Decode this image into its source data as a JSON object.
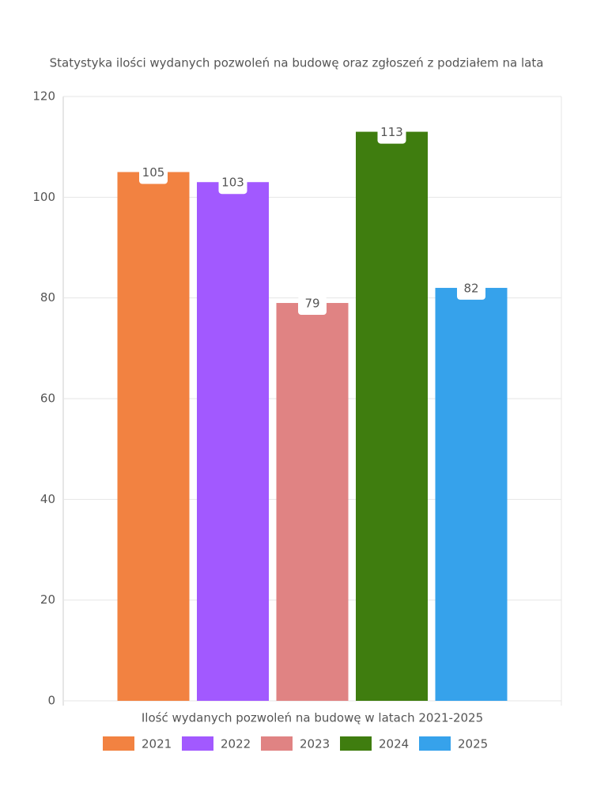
{
  "chart_data": {
    "type": "bar",
    "title": "Statystyka ilości wydanych pozwoleń na budowę oraz zgłoszeń z podziałem na lata",
    "categories": [
      "Ilość wydanych pozwoleń na budowę w latach 2021-2025"
    ],
    "series": [
      {
        "name": "2021",
        "color": "#f28241",
        "values": [
          105
        ]
      },
      {
        "name": "2022",
        "color": "#a259ff",
        "values": [
          103
        ]
      },
      {
        "name": "2023",
        "color": "#e08383",
        "values": [
          79
        ]
      },
      {
        "name": "2024",
        "color": "#3f7d0f",
        "values": [
          113
        ]
      },
      {
        "name": "2025",
        "color": "#36a2eb",
        "values": [
          82
        ]
      }
    ],
    "ylim": [
      0,
      120
    ],
    "yticks": [
      0,
      20,
      40,
      60,
      80,
      100,
      120
    ],
    "grid": true,
    "legend": "bottom"
  }
}
